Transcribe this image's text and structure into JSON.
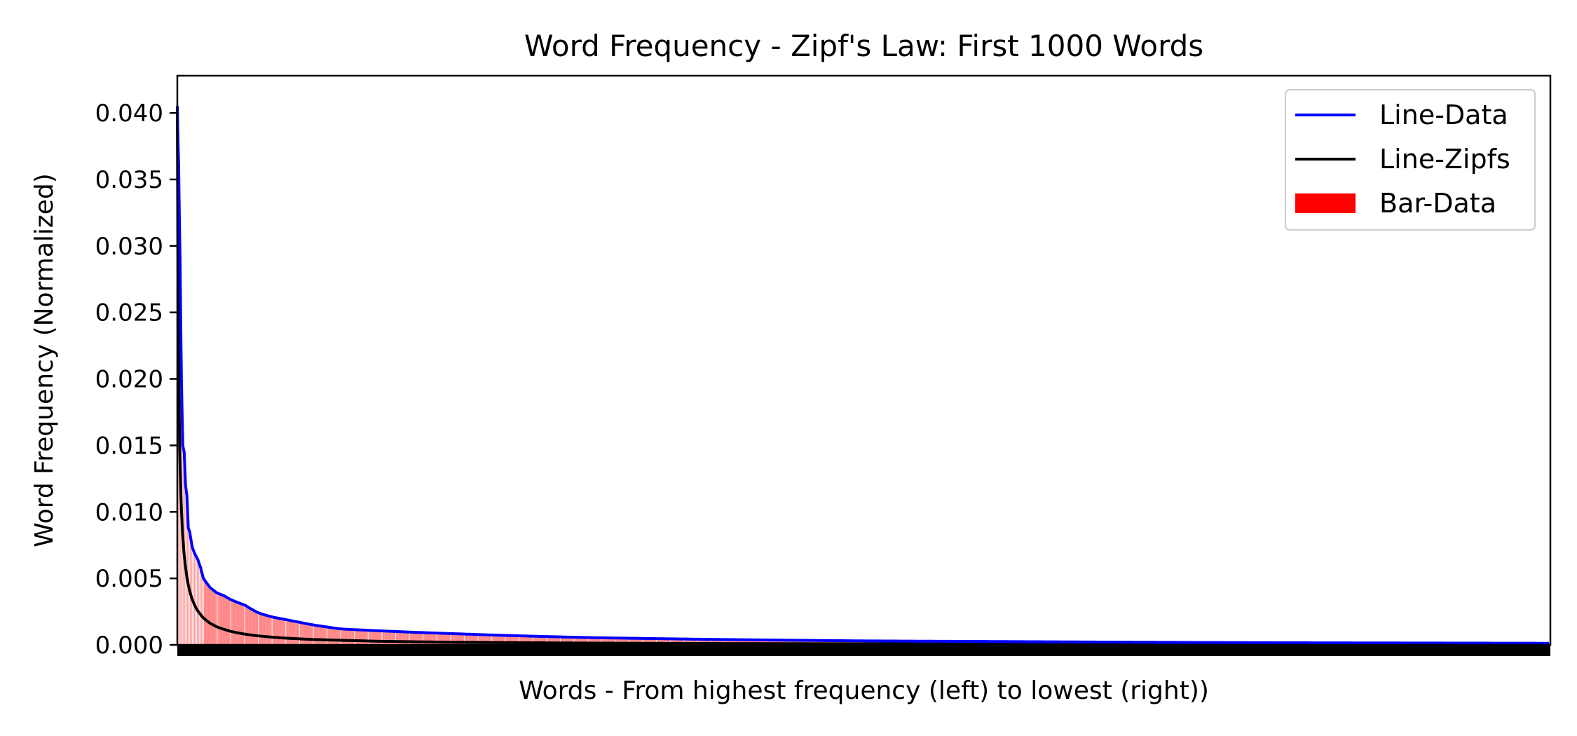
{
  "chart_data": {
    "type": "line",
    "title": "Word Frequency - Zipf's Law: First 1000 Words",
    "xlabel": "Words - From highest frequency (left) to lowest (right))",
    "ylabel": "Word Frequency (Normalized)",
    "xlim": [
      1,
      1000
    ],
    "ylim": [
      0,
      0.0428
    ],
    "yticks": [
      0.0,
      0.005,
      0.01,
      0.015,
      0.02,
      0.025,
      0.03,
      0.035,
      0.04
    ],
    "ytick_labels": [
      "0.000",
      "0.005",
      "0.010",
      "0.015",
      "0.020",
      "0.025",
      "0.030",
      "0.035",
      "0.040"
    ],
    "grid": false,
    "legend_position": "top-right",
    "legend": [
      {
        "name": "Line-Data",
        "kind": "line",
        "color": "#0000ff"
      },
      {
        "name": "Line-Zipfs",
        "kind": "line",
        "color": "#000000"
      },
      {
        "name": "Bar-Data",
        "kind": "bar",
        "color": "#ff0000"
      }
    ],
    "series": [
      {
        "name": "Line-Data",
        "color": "#0000ff",
        "x": [
          1,
          2,
          3,
          4,
          5,
          6,
          7,
          8,
          9,
          10,
          12,
          14,
          16,
          18,
          20,
          25,
          30,
          35,
          40,
          50,
          60,
          70,
          80,
          90,
          100,
          120,
          150,
          200,
          250,
          300,
          400,
          500,
          600,
          700,
          800,
          900,
          1000
        ],
        "y": [
          0.0405,
          0.036,
          0.029,
          0.02,
          0.015,
          0.0145,
          0.012,
          0.0112,
          0.0088,
          0.0085,
          0.0073,
          0.0068,
          0.0064,
          0.0058,
          0.005,
          0.0043,
          0.0039,
          0.0037,
          0.0034,
          0.003,
          0.0024,
          0.0021,
          0.0019,
          0.0017,
          0.0015,
          0.0012,
          0.00105,
          0.00085,
          0.00068,
          0.00055,
          0.0004,
          0.0003,
          0.00025,
          0.0002,
          0.00016,
          0.00014,
          0.00012
        ]
      },
      {
        "name": "Line-Zipfs",
        "color": "#000000",
        "formula_note": "",
        "x": [
          1,
          2,
          3,
          4,
          5,
          6,
          8,
          10,
          12,
          15,
          20,
          25,
          30,
          40,
          50,
          60,
          80,
          100,
          150,
          200,
          300,
          400,
          500,
          600,
          700,
          800,
          900,
          1000
        ],
        "y": [
          0.0405,
          0.02025,
          0.0135,
          0.010125,
          0.0081,
          0.00675,
          0.0050625,
          0.00405,
          0.003375,
          0.0027,
          0.002025,
          0.00162,
          0.00135,
          0.0010125,
          0.00081,
          0.000675,
          0.00050625,
          0.000405,
          0.00027,
          0.0002025,
          0.000135,
          0.00010125,
          8.1e-05,
          6.75e-05,
          5.79e-05,
          5.06e-05,
          4.5e-05,
          4.05e-05
        ]
      },
      {
        "name": "Bar-Data",
        "color": "#ff0000",
        "note": "one bar per word rank 1..1000, heights follow Line-Data"
      }
    ]
  }
}
